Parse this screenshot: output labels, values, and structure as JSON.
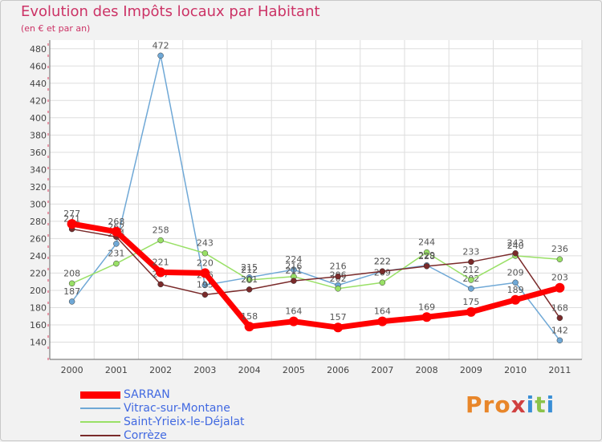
{
  "chart_data": {
    "type": "line",
    "title": "Evolution des Impôts locaux par Habitant",
    "subtitle": "(en € et par an)",
    "xlabel": "",
    "ylabel": "",
    "categories": [
      "2000",
      "2001",
      "2002",
      "2003",
      "2004",
      "2005",
      "2006",
      "2007",
      "2008",
      "2009",
      "2010",
      "2011"
    ],
    "ylim": [
      120,
      490
    ],
    "yticks": [
      140,
      160,
      180,
      200,
      220,
      240,
      260,
      280,
      300,
      320,
      340,
      360,
      380,
      400,
      420,
      440,
      460,
      480
    ],
    "series": [
      {
        "name": "SARRAN",
        "color": "#ff0000",
        "values": [
          277,
          268,
          221,
          220,
          158,
          164,
          157,
          164,
          169,
          175,
          189,
          203
        ]
      },
      {
        "name": "Vitrac-sur-Montane",
        "color": "#6fa8d6",
        "values": [
          187,
          254,
          472,
          206,
          215,
          224,
          206,
          222,
          229,
          202,
          209,
          142
        ]
      },
      {
        "name": "Saint-Yrieix-le-Déjalat",
        "color": "#99e066",
        "values": [
          208,
          231,
          258,
          243,
          212,
          216,
          202,
          209,
          244,
          212,
          240,
          236
        ]
      },
      {
        "name": "Corrèze",
        "color": "#7a2a2a",
        "values": [
          271,
          262,
          207,
          195,
          201,
          211,
          216,
          222,
          228,
          233,
          243,
          168
        ]
      }
    ],
    "legend_position": "bottom-left",
    "grid": true
  },
  "logo": {
    "p1": "Pro",
    "p2": "x",
    "p3": "i",
    "p4": "t",
    "p5": "i"
  }
}
